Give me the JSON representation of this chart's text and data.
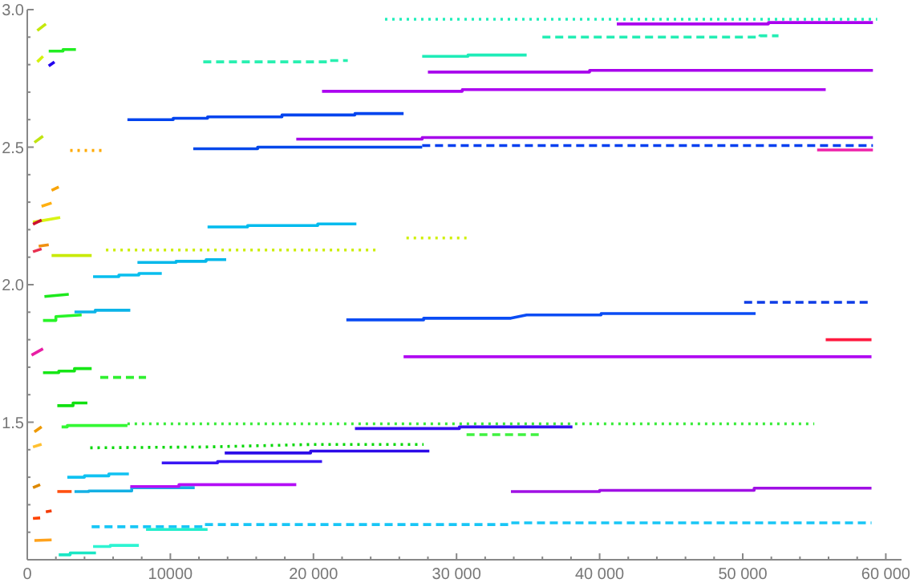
{
  "chart_data": {
    "type": "line",
    "xlim": [
      0,
      61100
    ],
    "ylim": [
      1.0,
      3.0
    ],
    "xticks": [
      0,
      {
        "value": 2000,
        "label": null
      },
      {
        "value": 4000,
        "label": null
      },
      {
        "value": 6000,
        "label": null
      },
      {
        "value": 8000,
        "label": null
      },
      10000,
      {
        "value": 12000,
        "label": null
      },
      {
        "value": 14000,
        "label": null
      },
      {
        "value": 16000,
        "label": null
      },
      {
        "value": 18000,
        "label": null
      },
      {
        "value": 20000,
        "label": "20 000"
      },
      {
        "value": 22000,
        "label": null
      },
      {
        "value": 24000,
        "label": null
      },
      {
        "value": 26000,
        "label": null
      },
      {
        "value": 28000,
        "label": null
      },
      {
        "value": 30000,
        "label": "30 000"
      },
      {
        "value": 32000,
        "label": null
      },
      {
        "value": 34000,
        "label": null
      },
      {
        "value": 36000,
        "label": null
      },
      {
        "value": 38000,
        "label": null
      },
      {
        "value": 40000,
        "label": "40 000"
      },
      {
        "value": 42000,
        "label": null
      },
      {
        "value": 44000,
        "label": null
      },
      {
        "value": 46000,
        "label": null
      },
      {
        "value": 48000,
        "label": null
      },
      {
        "value": 50000,
        "label": "50 000"
      },
      {
        "value": 52000,
        "label": null
      },
      {
        "value": 54000,
        "label": null
      },
      {
        "value": 56000,
        "label": null
      },
      {
        "value": 58000,
        "label": null
      },
      {
        "value": 60000,
        "label": "60 000"
      }
    ],
    "yticks": [
      {
        "value": 1.1,
        "label": null
      },
      {
        "value": 1.2,
        "label": null
      },
      {
        "value": 1.3,
        "label": null
      },
      {
        "value": 1.4,
        "label": null
      },
      1.5,
      {
        "value": 1.6,
        "label": null
      },
      {
        "value": 1.7,
        "label": null
      },
      {
        "value": 1.8,
        "label": null
      },
      {
        "value": 1.9,
        "label": null
      },
      {
        "value": 2.0,
        "label": "2.0"
      },
      {
        "value": 2.1,
        "label": null
      },
      {
        "value": 2.2,
        "label": null
      },
      {
        "value": 2.3,
        "label": null
      },
      {
        "value": 2.4,
        "label": null
      },
      2.5,
      {
        "value": 2.6,
        "label": null
      },
      {
        "value": 2.7,
        "label": null
      },
      {
        "value": 2.8,
        "label": null
      },
      {
        "value": 2.9,
        "label": null
      },
      {
        "value": 3.0,
        "label": "3.0"
      }
    ],
    "series": [
      {
        "color": "#22eebb",
        "line_style": "dotted",
        "x": [
          25000,
          59400
        ],
        "values": [
          2.965,
          2.965
        ]
      },
      {
        "color": "#aa00ee",
        "x": [
          41200,
          51800,
          51800,
          59100
        ],
        "values": [
          2.948,
          2.948,
          2.953,
          2.953
        ]
      },
      {
        "color": "#24eeb4",
        "line_style": "dashed",
        "x": [
          36000,
          51200,
          51200,
          52500
        ],
        "values": [
          2.9,
          2.9,
          2.905,
          2.905
        ]
      },
      {
        "color": "#1eecb8",
        "x": [
          27600,
          30800,
          30800,
          34900
        ],
        "values": [
          2.83,
          2.83,
          2.835,
          2.835
        ]
      },
      {
        "color": "#28f0b0",
        "line_style": "dashed",
        "x": [
          12300,
          21000,
          21000,
          22400
        ],
        "values": [
          2.81,
          2.81,
          2.815,
          2.815
        ]
      },
      {
        "color": "#a802ec",
        "x": [
          28000,
          39300,
          39300,
          59100
        ],
        "values": [
          2.773,
          2.773,
          2.779,
          2.779
        ]
      },
      {
        "color": "#ac04f0",
        "x": [
          20600,
          30400,
          30400,
          55800
        ],
        "values": [
          2.703,
          2.703,
          2.709,
          2.709
        ]
      },
      {
        "color": "#0044ee",
        "x": [
          7000,
          10200,
          10200,
          12600,
          12600,
          17800,
          17800,
          22900,
          22900,
          26300
        ],
        "values": [
          2.6,
          2.6,
          2.605,
          2.605,
          2.61,
          2.61,
          2.617,
          2.617,
          2.622,
          2.622
        ]
      },
      {
        "color": "#a606ea",
        "x": [
          18800,
          27600,
          27600,
          59100
        ],
        "values": [
          2.529,
          2.529,
          2.535,
          2.535
        ]
      },
      {
        "color": "#0248ea",
        "x": [
          11600,
          16100,
          16100,
          27600
        ],
        "values": [
          2.494,
          2.494,
          2.5,
          2.5
        ]
      },
      {
        "color": "#0640f0",
        "line_style": "dashed",
        "x": [
          27600,
          59100
        ],
        "values": [
          2.506,
          2.506
        ]
      },
      {
        "color": "#ee22aa",
        "x": [
          55200,
          59100
        ],
        "values": [
          2.49,
          2.49
        ]
      },
      {
        "color": "#00bbee",
        "x": [
          12600,
          15400,
          15400,
          20300,
          20300,
          23000
        ],
        "values": [
          2.21,
          2.21,
          2.215,
          2.215,
          2.221,
          2.221
        ]
      },
      {
        "color": "#ccee00",
        "line_style": "dotted",
        "x": [
          5500,
          24600
        ],
        "values": [
          2.126,
          2.126
        ]
      },
      {
        "color": "#c8ea06",
        "x": [
          1700,
          4500
        ],
        "values": [
          2.106,
          2.106
        ]
      },
      {
        "color": "#d0f004",
        "line_style": "dotted",
        "x": [
          26500,
          30700
        ],
        "values": [
          2.17,
          2.17
        ]
      },
      {
        "color": "#04b8ea",
        "x": [
          7700,
          10400,
          10400,
          12500,
          12500,
          13900
        ],
        "values": [
          2.081,
          2.081,
          2.085,
          2.085,
          2.091,
          2.091
        ]
      },
      {
        "color": "#08beee",
        "x": [
          4600,
          6400,
          6400,
          7800,
          7800,
          9400
        ],
        "values": [
          2.029,
          2.029,
          2.035,
          2.035,
          2.041,
          2.041
        ]
      },
      {
        "color": "#22ee22",
        "x": [
          1500,
          2500,
          2500,
          3400
        ],
        "values": [
          2.849,
          2.849,
          2.855,
          2.855
        ]
      },
      {
        "color": "#ffaa00",
        "line_style": "dotted",
        "x": [
          3000,
          5200
        ],
        "values": [
          2.488,
          2.488
        ]
      },
      {
        "color": "#c4e80a",
        "x": [
          700,
          1300
        ],
        "values": [
          2.924,
          2.948
        ]
      },
      {
        "color": "#d4f20c",
        "x": [
          700,
          1100
        ],
        "values": [
          2.81,
          2.83
        ]
      },
      {
        "color": "#c0e410",
        "x": [
          500,
          1100
        ],
        "values": [
          2.517,
          2.54
        ]
      },
      {
        "color": "#f8a408",
        "x": [
          1700,
          2200
        ],
        "values": [
          2.343,
          2.355
        ]
      },
      {
        "color": "#ffb010",
        "x": [
          1000,
          1700
        ],
        "values": [
          2.285,
          2.297
        ]
      },
      {
        "color": "#d8f414",
        "x": [
          400,
          2300
        ],
        "values": [
          2.227,
          2.244
        ]
      },
      {
        "color": "#f09010",
        "x": [
          800,
          1500
        ],
        "values": [
          2.14,
          2.145
        ]
      },
      {
        "color": "#cc1030",
        "x": [
          400,
          1000
        ],
        "values": [
          2.22,
          2.235
        ]
      },
      {
        "color": "#e83050",
        "x": [
          400,
          1000
        ],
        "values": [
          2.12,
          2.13
        ]
      },
      {
        "color": "#2200ee",
        "x": [
          1500,
          1900
        ],
        "values": [
          2.795,
          2.81
        ]
      },
      {
        "color": "#1ce81c",
        "x": [
          1200,
          2900
        ],
        "values": [
          1.957,
          1.965
        ]
      },
      {
        "color": "#0cb4e8",
        "x": [
          3300,
          4750,
          4750,
          7200
        ],
        "values": [
          1.901,
          1.901,
          1.907,
          1.907
        ]
      },
      {
        "color": "#28f428",
        "x": [
          1100,
          2000,
          2000,
          3800
        ],
        "values": [
          1.87,
          1.87,
          1.884,
          1.89
        ]
      },
      {
        "color": "#0a4cf4",
        "x": [
          22300,
          27700,
          27700,
          33800,
          34900,
          40100,
          40100,
          50900
        ],
        "values": [
          1.872,
          1.872,
          1.878,
          1.878,
          1.89,
          1.89,
          1.895,
          1.895
        ]
      },
      {
        "color": "#0e3ce6",
        "line_style": "dashed",
        "x": [
          50100,
          59000
        ],
        "values": [
          1.936,
          1.936
        ]
      },
      {
        "color": "#b00af2",
        "x": [
          26300,
          59000
        ],
        "values": [
          1.738,
          1.738
        ]
      },
      {
        "color": "#ff1a40",
        "x": [
          55800,
          59000
        ],
        "values": [
          1.8,
          1.8
        ]
      },
      {
        "color": "#e81ea4",
        "x": [
          300,
          1100
        ],
        "values": [
          1.744,
          1.767
        ]
      },
      {
        "color": "#16e616",
        "x": [
          1100,
          2200,
          2200,
          3300,
          3300,
          4500
        ],
        "values": [
          1.68,
          1.68,
          1.686,
          1.686,
          1.695,
          1.695
        ]
      },
      {
        "color": "#30f030",
        "line_style": "dashed",
        "x": [
          5100,
          8300
        ],
        "values": [
          1.663,
          1.663
        ]
      },
      {
        "color": "#10e010",
        "x": [
          2100,
          3200,
          3200,
          4200
        ],
        "values": [
          1.56,
          1.56,
          1.57,
          1.57
        ]
      },
      {
        "color": "#34f834",
        "x": [
          2400,
          2800,
          2800,
          7000
        ],
        "values": [
          1.483,
          1.483,
          1.488,
          1.488
        ]
      },
      {
        "color": "#3aec3a",
        "line_style": "dotted",
        "x": [
          7000,
          55000
        ],
        "values": [
          1.494,
          1.494
        ]
      },
      {
        "color": "#3311ee",
        "x": [
          22900,
          30200,
          30200,
          38100
        ],
        "values": [
          1.477,
          1.477,
          1.483,
          1.483
        ]
      },
      {
        "color": "#0ad80a",
        "line_style": "dotted",
        "x": [
          4400,
          12500,
          19800,
          27700
        ],
        "values": [
          1.407,
          1.41,
          1.419,
          1.419
        ]
      },
      {
        "color": "#40f240",
        "line_style": "dashed",
        "x": [
          30700,
          36000
        ],
        "values": [
          1.455,
          1.455
        ]
      },
      {
        "color": "#2d0be8",
        "x": [
          13800,
          19800,
          19800,
          28100
        ],
        "values": [
          1.388,
          1.388,
          1.395,
          1.395
        ]
      },
      {
        "color": "#3917f4",
        "x": [
          9400,
          13300,
          13300,
          20600
        ],
        "values": [
          1.352,
          1.352,
          1.357,
          1.357
        ]
      },
      {
        "color": "#ee9900",
        "x": [
          500,
          1000
        ],
        "values": [
          1.465,
          1.483
        ]
      },
      {
        "color": "#ffc030",
        "x": [
          400,
          1000
        ],
        "values": [
          1.41,
          1.42
        ]
      },
      {
        "color": "#dd8800",
        "x": [
          400,
          900
        ],
        "values": [
          1.262,
          1.273
        ]
      },
      {
        "color": "#ffa21c",
        "x": [
          500,
          1700
        ],
        "values": [
          1.07,
          1.072
        ]
      },
      {
        "color": "#ff4400",
        "x": [
          400,
          900
        ],
        "values": [
          1.15,
          1.152
        ]
      },
      {
        "color": "#f43c08",
        "x": [
          1300,
          1700
        ],
        "values": [
          1.174,
          1.178
        ]
      },
      {
        "color": "#10c2f2",
        "x": [
          2800,
          4000,
          4000,
          5700,
          5700,
          7100
        ],
        "values": [
          1.3,
          1.3,
          1.305,
          1.305,
          1.312,
          1.312
        ]
      },
      {
        "color": "#14b0e4",
        "x": [
          3300,
          4300,
          4300,
          7300,
          7300,
          11700
        ],
        "values": [
          1.248,
          1.248,
          1.25,
          1.25,
          1.262,
          1.262
        ]
      },
      {
        "color": "#b40ef6",
        "x": [
          7200,
          10600,
          10600,
          18800
        ],
        "values": [
          1.266,
          1.266,
          1.273,
          1.273
        ]
      },
      {
        "color": "#ff5010",
        "x": [
          2100,
          3100
        ],
        "values": [
          1.248,
          1.248
        ]
      },
      {
        "color": "#a010e4",
        "x": [
          33800,
          40000,
          40000,
          50800,
          50800,
          59000
        ],
        "values": [
          1.248,
          1.248,
          1.252,
          1.252,
          1.26,
          1.26
        ]
      },
      {
        "color": "#18c6f6",
        "line_style": "dashed",
        "x": [
          4500,
          12400,
          12400,
          33700,
          33700,
          59000
        ],
        "values": [
          1.12,
          1.12,
          1.128,
          1.128,
          1.134,
          1.134
        ]
      },
      {
        "color": "#22eecc",
        "x": [
          8300,
          12600
        ],
        "values": [
          1.11,
          1.11
        ]
      },
      {
        "color": "#1ae6c4",
        "x": [
          2200,
          3000,
          3000,
          4800
        ],
        "values": [
          1.018,
          1.018,
          1.025,
          1.025
        ]
      },
      {
        "color": "#2ef4d2",
        "x": [
          4600,
          5800,
          5800,
          7800
        ],
        "values": [
          1.048,
          1.048,
          1.052,
          1.052
        ]
      }
    ]
  }
}
